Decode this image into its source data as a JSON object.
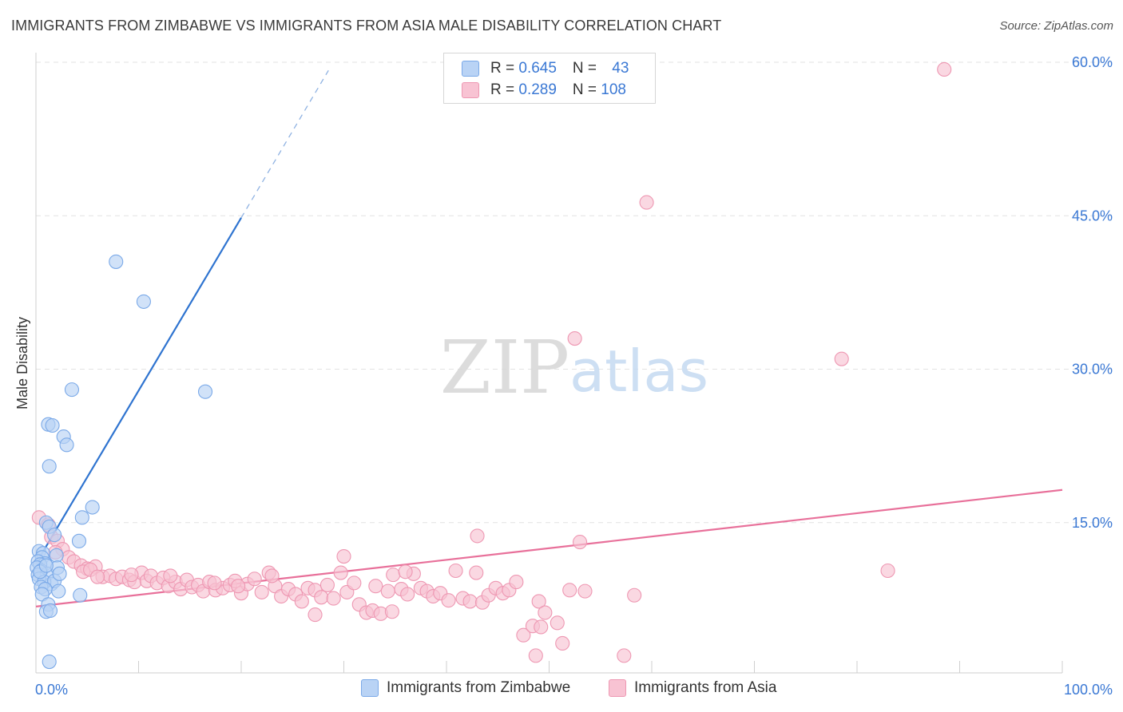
{
  "title": "IMMIGRANTS FROM ZIMBABWE VS IMMIGRANTS FROM ASIA MALE DISABILITY CORRELATION CHART",
  "source": "Source: ZipAtlas.com",
  "watermark": {
    "zip": "ZIP",
    "atlas": "atlas"
  },
  "colors": {
    "blue_fill": "#b9d3f5",
    "blue_stroke": "#7aa9e8",
    "blue_line": "#2f74d0",
    "pink_fill": "#f8c3d3",
    "pink_stroke": "#ee97b2",
    "pink_line": "#e8709a",
    "tick_label": "#3a78d4",
    "grid": "#e2e2e2"
  },
  "legend": {
    "series1": {
      "r_label": "R = ",
      "r_value": "0.645",
      "n_label": "N = ",
      "n_value": "43"
    },
    "series2": {
      "r_label": "R = ",
      "r_value": "0.289",
      "n_label": "N = ",
      "n_value": "108"
    }
  },
  "chart_data": {
    "type": "scatter",
    "title": "IMMIGRANTS FROM ZIMBABWE VS IMMIGRANTS FROM ASIA MALE DISABILITY CORRELATION CHART",
    "xlabel": "",
    "ylabel": "Male Disability",
    "xlim": [
      0,
      100
    ],
    "ylim": [
      0,
      60
    ],
    "x_tick_labels": [
      {
        "value": 0,
        "label": "0.0%"
      },
      {
        "value": 100,
        "label": "100.0%"
      }
    ],
    "y_tick_labels": [
      {
        "value": 15,
        "label": "15.0%"
      },
      {
        "value": 30,
        "label": "30.0%"
      },
      {
        "value": 45,
        "label": "45.0%"
      },
      {
        "value": 60,
        "label": "60.0%"
      }
    ],
    "series": [
      {
        "name": "Immigrants from Zimbabwe",
        "color": "blue",
        "r": 0.645,
        "n": 43,
        "trend": {
          "x1": 0,
          "y1": 11.0,
          "x2": 20,
          "y2": 44.8,
          "dash_to_x": 28.5,
          "dash_to_y": 59.2
        },
        "points": [
          [
            7.8,
            40.5
          ],
          [
            10.5,
            36.6
          ],
          [
            3.5,
            28.0
          ],
          [
            16.5,
            27.8
          ],
          [
            1.2,
            24.6
          ],
          [
            1.6,
            24.5
          ],
          [
            2.7,
            23.4
          ],
          [
            3.0,
            22.6
          ],
          [
            1.3,
            20.5
          ],
          [
            5.5,
            16.5
          ],
          [
            4.5,
            15.5
          ],
          [
            1.0,
            15.0
          ],
          [
            1.3,
            14.6
          ],
          [
            1.8,
            13.8
          ],
          [
            4.2,
            13.2
          ],
          [
            0.3,
            12.2
          ],
          [
            0.7,
            12.0
          ],
          [
            0.6,
            11.6
          ],
          [
            2.0,
            11.8
          ],
          [
            0.2,
            11.2
          ],
          [
            0.9,
            11.0
          ],
          [
            0.4,
            10.9
          ],
          [
            0.1,
            10.6
          ],
          [
            0.5,
            10.3
          ],
          [
            0.2,
            9.9
          ],
          [
            1.1,
            10.0
          ],
          [
            2.1,
            10.6
          ],
          [
            0.3,
            9.5
          ],
          [
            1.5,
            9.0
          ],
          [
            0.8,
            9.2
          ],
          [
            1.8,
            9.3
          ],
          [
            2.3,
            10.0
          ],
          [
            0.5,
            8.7
          ],
          [
            0.9,
            8.5
          ],
          [
            2.2,
            8.3
          ],
          [
            0.6,
            8.0
          ],
          [
            4.3,
            7.9
          ],
          [
            1.2,
            7.0
          ],
          [
            1.0,
            6.3
          ],
          [
            1.4,
            6.4
          ],
          [
            1.3,
            1.4
          ],
          [
            0.4,
            10.2
          ],
          [
            1.0,
            10.8
          ]
        ]
      },
      {
        "name": "Immigrants from Asia",
        "color": "pink",
        "r": 0.289,
        "n": 108,
        "trend": {
          "x1": 0,
          "y1": 6.8,
          "x2": 100,
          "y2": 18.2
        },
        "points": [
          [
            88.5,
            59.3
          ],
          [
            59.5,
            46.3
          ],
          [
            52.5,
            33.0
          ],
          [
            78.5,
            31.0
          ],
          [
            0.3,
            15.5
          ],
          [
            1.2,
            14.8
          ],
          [
            1.5,
            13.6
          ],
          [
            2.1,
            13.2
          ],
          [
            2.6,
            12.4
          ],
          [
            1.9,
            12.1
          ],
          [
            3.2,
            11.6
          ],
          [
            3.7,
            11.2
          ],
          [
            4.4,
            10.8
          ],
          [
            5.0,
            10.5
          ],
          [
            5.8,
            10.7
          ],
          [
            4.6,
            10.2
          ],
          [
            5.3,
            10.4
          ],
          [
            6.5,
            9.7
          ],
          [
            7.2,
            9.8
          ],
          [
            7.8,
            9.5
          ],
          [
            8.4,
            9.7
          ],
          [
            9.1,
            9.4
          ],
          [
            9.6,
            9.2
          ],
          [
            10.3,
            10.1
          ],
          [
            10.8,
            9.3
          ],
          [
            11.2,
            9.8
          ],
          [
            11.8,
            9.1
          ],
          [
            12.4,
            9.6
          ],
          [
            12.9,
            8.8
          ],
          [
            13.6,
            9.2
          ],
          [
            14.1,
            8.5
          ],
          [
            14.7,
            9.4
          ],
          [
            15.2,
            8.7
          ],
          [
            15.8,
            8.9
          ],
          [
            16.3,
            8.3
          ],
          [
            16.9,
            9.2
          ],
          [
            17.5,
            8.4
          ],
          [
            18.2,
            8.6
          ],
          [
            18.9,
            8.9
          ],
          [
            19.4,
            9.3
          ],
          [
            20.0,
            8.1
          ],
          [
            20.6,
            9.0
          ],
          [
            21.3,
            9.5
          ],
          [
            22.0,
            8.2
          ],
          [
            22.7,
            10.1
          ],
          [
            23.3,
            8.8
          ],
          [
            23.9,
            7.8
          ],
          [
            24.6,
            8.5
          ],
          [
            25.3,
            8.0
          ],
          [
            25.9,
            7.3
          ],
          [
            26.5,
            8.6
          ],
          [
            27.2,
            8.4
          ],
          [
            27.8,
            7.7
          ],
          [
            28.4,
            8.9
          ],
          [
            29.0,
            7.6
          ],
          [
            29.7,
            10.1
          ],
          [
            30.3,
            8.2
          ],
          [
            31.0,
            9.1
          ],
          [
            31.5,
            7.0
          ],
          [
            32.2,
            6.2
          ],
          [
            32.8,
            6.4
          ],
          [
            33.1,
            8.8
          ],
          [
            33.6,
            6.1
          ],
          [
            34.3,
            8.3
          ],
          [
            34.8,
            9.9
          ],
          [
            35.6,
            8.5
          ],
          [
            36.2,
            8.0
          ],
          [
            36.8,
            10.0
          ],
          [
            37.5,
            8.6
          ],
          [
            38.1,
            8.3
          ],
          [
            38.7,
            7.8
          ],
          [
            39.4,
            8.1
          ],
          [
            40.2,
            7.4
          ],
          [
            40.9,
            10.3
          ],
          [
            41.6,
            7.6
          ],
          [
            42.3,
            7.3
          ],
          [
            42.9,
            10.1
          ],
          [
            43.5,
            7.2
          ],
          [
            44.1,
            7.9
          ],
          [
            44.8,
            8.6
          ],
          [
            45.5,
            8.1
          ],
          [
            46.1,
            8.4
          ],
          [
            46.8,
            9.2
          ],
          [
            30.0,
            11.7
          ],
          [
            43.0,
            13.7
          ],
          [
            53.0,
            13.1
          ],
          [
            47.5,
            4.0
          ],
          [
            48.4,
            4.9
          ],
          [
            49.2,
            4.8
          ],
          [
            49.0,
            7.3
          ],
          [
            49.6,
            6.2
          ],
          [
            50.8,
            5.2
          ],
          [
            51.3,
            3.2
          ],
          [
            52.0,
            8.4
          ],
          [
            53.5,
            8.3
          ],
          [
            58.3,
            7.9
          ],
          [
            48.7,
            2.0
          ],
          [
            57.3,
            2.0
          ],
          [
            83.0,
            10.3
          ],
          [
            36.0,
            10.2
          ],
          [
            27.2,
            6.0
          ],
          [
            34.7,
            6.3
          ],
          [
            23.0,
            9.8
          ],
          [
            19.7,
            8.8
          ],
          [
            17.4,
            9.1
          ],
          [
            13.1,
            9.8
          ],
          [
            6.0,
            9.7
          ],
          [
            9.3,
            9.9
          ]
        ]
      }
    ]
  },
  "bottom_legend": {
    "series1_label": "Immigrants from Zimbabwe",
    "series2_label": "Immigrants from Asia"
  }
}
